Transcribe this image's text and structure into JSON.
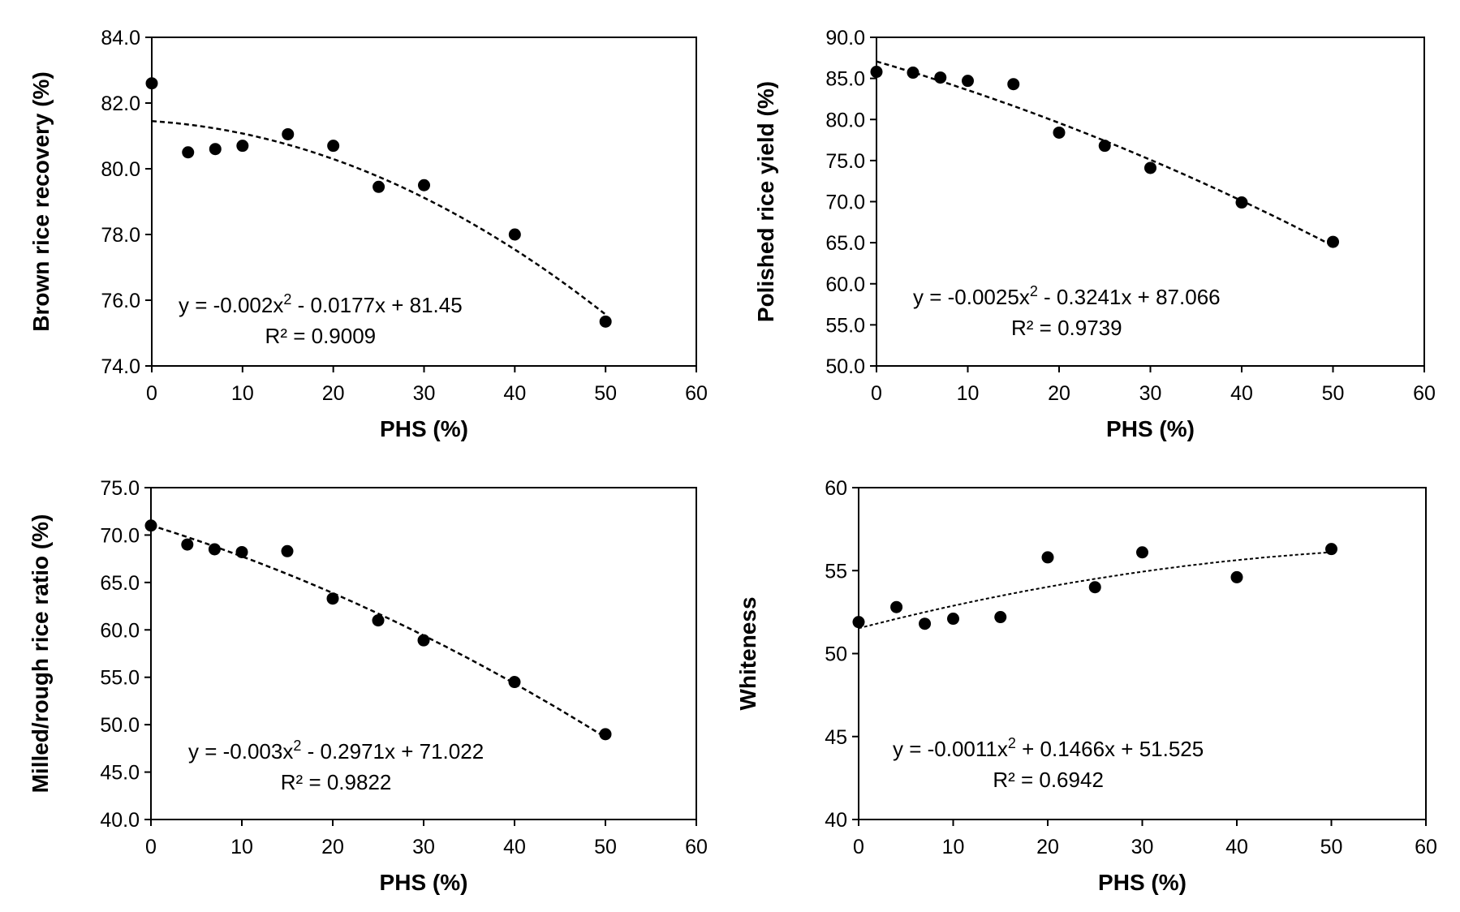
{
  "chart_data": [
    {
      "type": "scatter",
      "xlabel": "PHS (%)",
      "ylabel": "Brown rice recovery (%)",
      "xlim": [
        0,
        60
      ],
      "ylim": [
        74,
        84
      ],
      "x_ticks": [
        "0",
        "10",
        "20",
        "30",
        "40",
        "50",
        "60"
      ],
      "y_ticks": [
        "74.0",
        "76.0",
        "78.0",
        "80.0",
        "82.0",
        "84.0"
      ],
      "points": [
        {
          "x": 0,
          "y": 82.6
        },
        {
          "x": 4,
          "y": 80.5
        },
        {
          "x": 7,
          "y": 80.6
        },
        {
          "x": 10,
          "y": 80.7
        },
        {
          "x": 15,
          "y": 81.05
        },
        {
          "x": 20,
          "y": 80.7
        },
        {
          "x": 25,
          "y": 79.45
        },
        {
          "x": 30,
          "y": 79.5
        },
        {
          "x": 40,
          "y": 78.0
        },
        {
          "x": 50,
          "y": 75.35
        }
      ],
      "trendline": {
        "type": "polynomial",
        "coefficients": [
          -0.002,
          -0.0177,
          81.45
        ],
        "x_range": [
          0,
          50
        ]
      },
      "equation_line1_pre": "y = -0.002x",
      "equation_line1_post": " - 0.0177x + 81.45",
      "equation_line2": "R² = 0.9009"
    },
    {
      "type": "scatter",
      "xlabel": "PHS (%)",
      "ylabel": "Polished rice yield (%)",
      "xlim": [
        0,
        60
      ],
      "ylim": [
        50,
        90
      ],
      "x_ticks": [
        "0",
        "10",
        "20",
        "30",
        "40",
        "50",
        "60"
      ],
      "y_ticks": [
        "50.0",
        "55.0",
        "60.0",
        "65.0",
        "70.0",
        "75.0",
        "80.0",
        "85.0",
        "90.0"
      ],
      "points": [
        {
          "x": 0,
          "y": 85.8
        },
        {
          "x": 4,
          "y": 85.7
        },
        {
          "x": 7,
          "y": 85.1
        },
        {
          "x": 10,
          "y": 84.7
        },
        {
          "x": 15,
          "y": 84.3
        },
        {
          "x": 20,
          "y": 78.4
        },
        {
          "x": 25,
          "y": 76.8
        },
        {
          "x": 30,
          "y": 74.1
        },
        {
          "x": 40,
          "y": 69.9
        },
        {
          "x": 50,
          "y": 65.1
        }
      ],
      "trendline": {
        "type": "polynomial",
        "coefficients": [
          -0.0025,
          -0.3241,
          87.066
        ],
        "x_range": [
          0,
          50
        ]
      },
      "equation_line1_pre": "y = -0.0025x",
      "equation_line1_post": " - 0.3241x + 87.066",
      "equation_line2": "R² = 0.9739"
    },
    {
      "type": "scatter",
      "xlabel": "PHS (%)",
      "ylabel": "Milled/rough rice ratio (%)",
      "xlim": [
        0,
        60
      ],
      "ylim": [
        40,
        75
      ],
      "x_ticks": [
        "0",
        "10",
        "20",
        "30",
        "40",
        "50",
        "60"
      ],
      "y_ticks": [
        "40.0",
        "45.0",
        "50.0",
        "55.0",
        "60.0",
        "65.0",
        "70.0",
        "75.0"
      ],
      "points": [
        {
          "x": 0,
          "y": 71.0
        },
        {
          "x": 4,
          "y": 69.0
        },
        {
          "x": 7,
          "y": 68.5
        },
        {
          "x": 10,
          "y": 68.2
        },
        {
          "x": 15,
          "y": 68.3
        },
        {
          "x": 20,
          "y": 63.3
        },
        {
          "x": 25,
          "y": 61.0
        },
        {
          "x": 30,
          "y": 58.9
        },
        {
          "x": 40,
          "y": 54.5
        },
        {
          "x": 50,
          "y": 49.0
        }
      ],
      "trendline": {
        "type": "polynomial",
        "coefficients": [
          -0.003,
          -0.2971,
          71.022
        ],
        "x_range": [
          0,
          50
        ]
      },
      "equation_line1_pre": "y = -0.003x",
      "equation_line1_post": " - 0.2971x + 71.022",
      "equation_line2": "R² = 0.9822"
    },
    {
      "type": "scatter",
      "xlabel": "PHS (%)",
      "ylabel": "Whiteness",
      "xlim": [
        0,
        60
      ],
      "ylim": [
        40,
        60
      ],
      "x_ticks": [
        "0",
        "10",
        "20",
        "30",
        "40",
        "50",
        "60"
      ],
      "y_ticks": [
        "40",
        "45",
        "50",
        "55",
        "60"
      ],
      "points": [
        {
          "x": 0,
          "y": 51.9
        },
        {
          "x": 4,
          "y": 52.8
        },
        {
          "x": 7,
          "y": 51.8
        },
        {
          "x": 10,
          "y": 52.1
        },
        {
          "x": 15,
          "y": 52.2
        },
        {
          "x": 20,
          "y": 55.8
        },
        {
          "x": 25,
          "y": 54.0
        },
        {
          "x": 30,
          "y": 56.1
        },
        {
          "x": 40,
          "y": 54.6
        },
        {
          "x": 50,
          "y": 56.3
        }
      ],
      "trendline": {
        "type": "polynomial",
        "coefficients": [
          -0.0011,
          0.1466,
          51.525
        ],
        "x_range": [
          0,
          50
        ]
      },
      "equation_line1_pre": "y = -0.0011x",
      "equation_line1_post": " + 0.1466x + 51.525",
      "equation_line2": "R² = 0.6942"
    }
  ],
  "superscript": "2",
  "colors": {
    "marker": "#000000",
    "axis": "#000000",
    "background": "#ffffff"
  }
}
